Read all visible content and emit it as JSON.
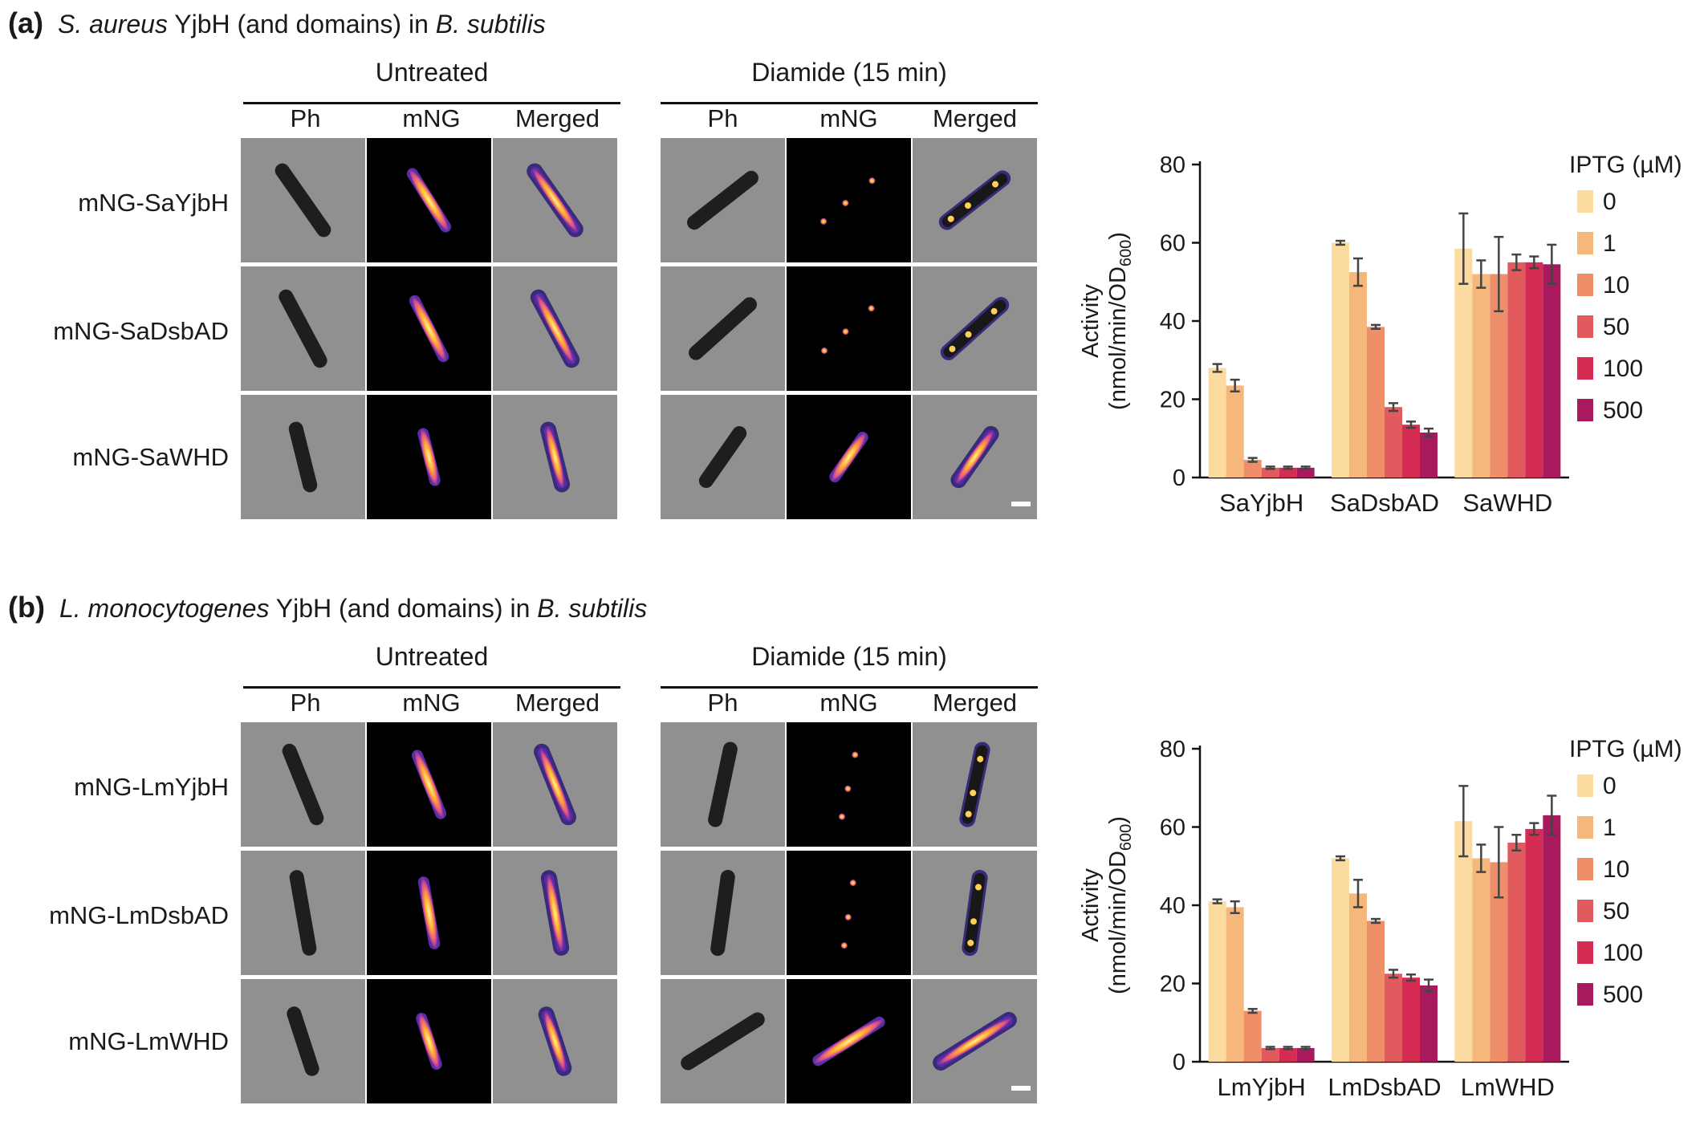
{
  "panels": [
    {
      "letter": "(a)",
      "title": {
        "species": "S. aureus",
        "mid": " YjbH (and domains) in ",
        "host": "B. subtilis"
      },
      "microscopy": {
        "groups": [
          "Untreated",
          "Diamide (15 min)"
        ],
        "columns": [
          "Ph",
          "mNG",
          "Merged"
        ],
        "rows": [
          "mNG-SaYjbH",
          "mNG-SaDsbAD",
          "mNG-SaWHD"
        ]
      }
    },
    {
      "letter": "(b)",
      "title": {
        "species": "L. monocytogenes",
        "mid": " YjbH (and domains) in ",
        "host": "B. subtilis"
      },
      "microscopy": {
        "groups": [
          "Untreated",
          "Diamide (15 min)"
        ],
        "columns": [
          "Ph",
          "mNG",
          "Merged"
        ],
        "rows": [
          "mNG-LmYjbH",
          "mNG-LmDsbAD",
          "mNG-LmWHD"
        ]
      }
    }
  ],
  "chart_data": [
    {
      "type": "bar",
      "ylabel_line1": "Activity",
      "ylabel_line2_main": "(nmol/min/OD",
      "ylabel_line2_sub": "600",
      "ylabel_line2_end": ")",
      "ylim": [
        0,
        80
      ],
      "yticks": [
        0,
        20,
        40,
        60,
        80
      ],
      "legend_title": "IPTG (µM)",
      "legend_position": "right",
      "categories": [
        "SaYjbH",
        "SaDsbAD",
        "SaWHD"
      ],
      "series": [
        {
          "name": "0",
          "color": "#fbdba0",
          "values": [
            28,
            60,
            58.5
          ],
          "errors": [
            1,
            0.5,
            9
          ]
        },
        {
          "name": "1",
          "color": "#f5b77a",
          "values": [
            23.5,
            52.5,
            52
          ],
          "errors": [
            1.5,
            3.5,
            3.5
          ]
        },
        {
          "name": "10",
          "color": "#ee8f6a",
          "values": [
            4.5,
            38.5,
            52
          ],
          "errors": [
            0.5,
            0.5,
            9.5
          ]
        },
        {
          "name": "50",
          "color": "#e15a5d",
          "values": [
            2.5,
            18,
            55
          ],
          "errors": [
            0.3,
            1,
            2
          ]
        },
        {
          "name": "100",
          "color": "#d42c53",
          "values": [
            2.5,
            13.5,
            55
          ],
          "errors": [
            0.3,
            0.8,
            1.5
          ]
        },
        {
          "name": "500",
          "color": "#a81a5d",
          "values": [
            2.5,
            11.5,
            54.5
          ],
          "errors": [
            0.3,
            1,
            5
          ]
        }
      ]
    },
    {
      "type": "bar",
      "ylabel_line1": "Activity",
      "ylabel_line2_main": "(nmol/min/OD",
      "ylabel_line2_sub": "600",
      "ylabel_line2_end": ")",
      "ylim": [
        0,
        80
      ],
      "yticks": [
        0,
        20,
        40,
        60,
        80
      ],
      "legend_title": "IPTG (µM)",
      "legend_position": "right",
      "categories": [
        "LmYjbH",
        "LmDsbAD",
        "LmWHD"
      ],
      "series": [
        {
          "name": "0",
          "color": "#fbdba0",
          "values": [
            41,
            52,
            61.5
          ],
          "errors": [
            0.5,
            0.5,
            9
          ]
        },
        {
          "name": "1",
          "color": "#f5b77a",
          "values": [
            39.5,
            43,
            52
          ],
          "errors": [
            1.5,
            3.5,
            3.5
          ]
        },
        {
          "name": "10",
          "color": "#ee8f6a",
          "values": [
            13,
            36,
            51
          ],
          "errors": [
            0.5,
            0.5,
            9
          ]
        },
        {
          "name": "50",
          "color": "#e15a5d",
          "values": [
            3.5,
            22.5,
            56
          ],
          "errors": [
            0.3,
            1,
            2
          ]
        },
        {
          "name": "100",
          "color": "#d42c53",
          "values": [
            3.5,
            21.5,
            59.5
          ],
          "errors": [
            0.3,
            0.8,
            1.5
          ]
        },
        {
          "name": "500",
          "color": "#a81a5d",
          "values": [
            3.5,
            19.5,
            63
          ],
          "errors": [
            0.3,
            1.5,
            5
          ]
        }
      ]
    }
  ]
}
